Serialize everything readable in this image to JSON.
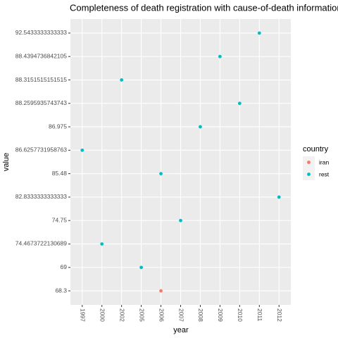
{
  "chart_data": {
    "type": "scatter",
    "title": "Completeness of death registration with cause-of-death information",
    "x_label": "year",
    "y_label": "value",
    "categories": [
      "1997",
      "2000",
      "2002",
      "2005",
      "2006",
      "2007",
      "2008",
      "2009",
      "2010",
      "2011",
      "2012"
    ],
    "yticks": [
      68.3,
      69,
      74.4673722130689,
      74.75,
      82.8333333333333,
      85.48,
      86.6257731958763,
      86.975,
      88.2595935743743,
      88.3151515151515,
      88.4394736842105,
      92.5433333333333
    ],
    "legend_title": "country",
    "grid": true,
    "series": [
      {
        "name": "iran",
        "color": "#F8766D",
        "x": [
          "2006"
        ],
        "values": [
          68.3
        ]
      },
      {
        "name": "rest",
        "color": "#00BFC4",
        "x": [
          "1997",
          "2000",
          "2002",
          "2005",
          "2006",
          "2007",
          "2008",
          "2009",
          "2010",
          "2011",
          "2012"
        ],
        "values": [
          86.6257731958763,
          74.4673722130689,
          88.3151515151515,
          69,
          85.48,
          74.75,
          86.975,
          88.4394736842105,
          88.2595935743743,
          92.5433333333333,
          82.8333333333333
        ]
      }
    ]
  }
}
